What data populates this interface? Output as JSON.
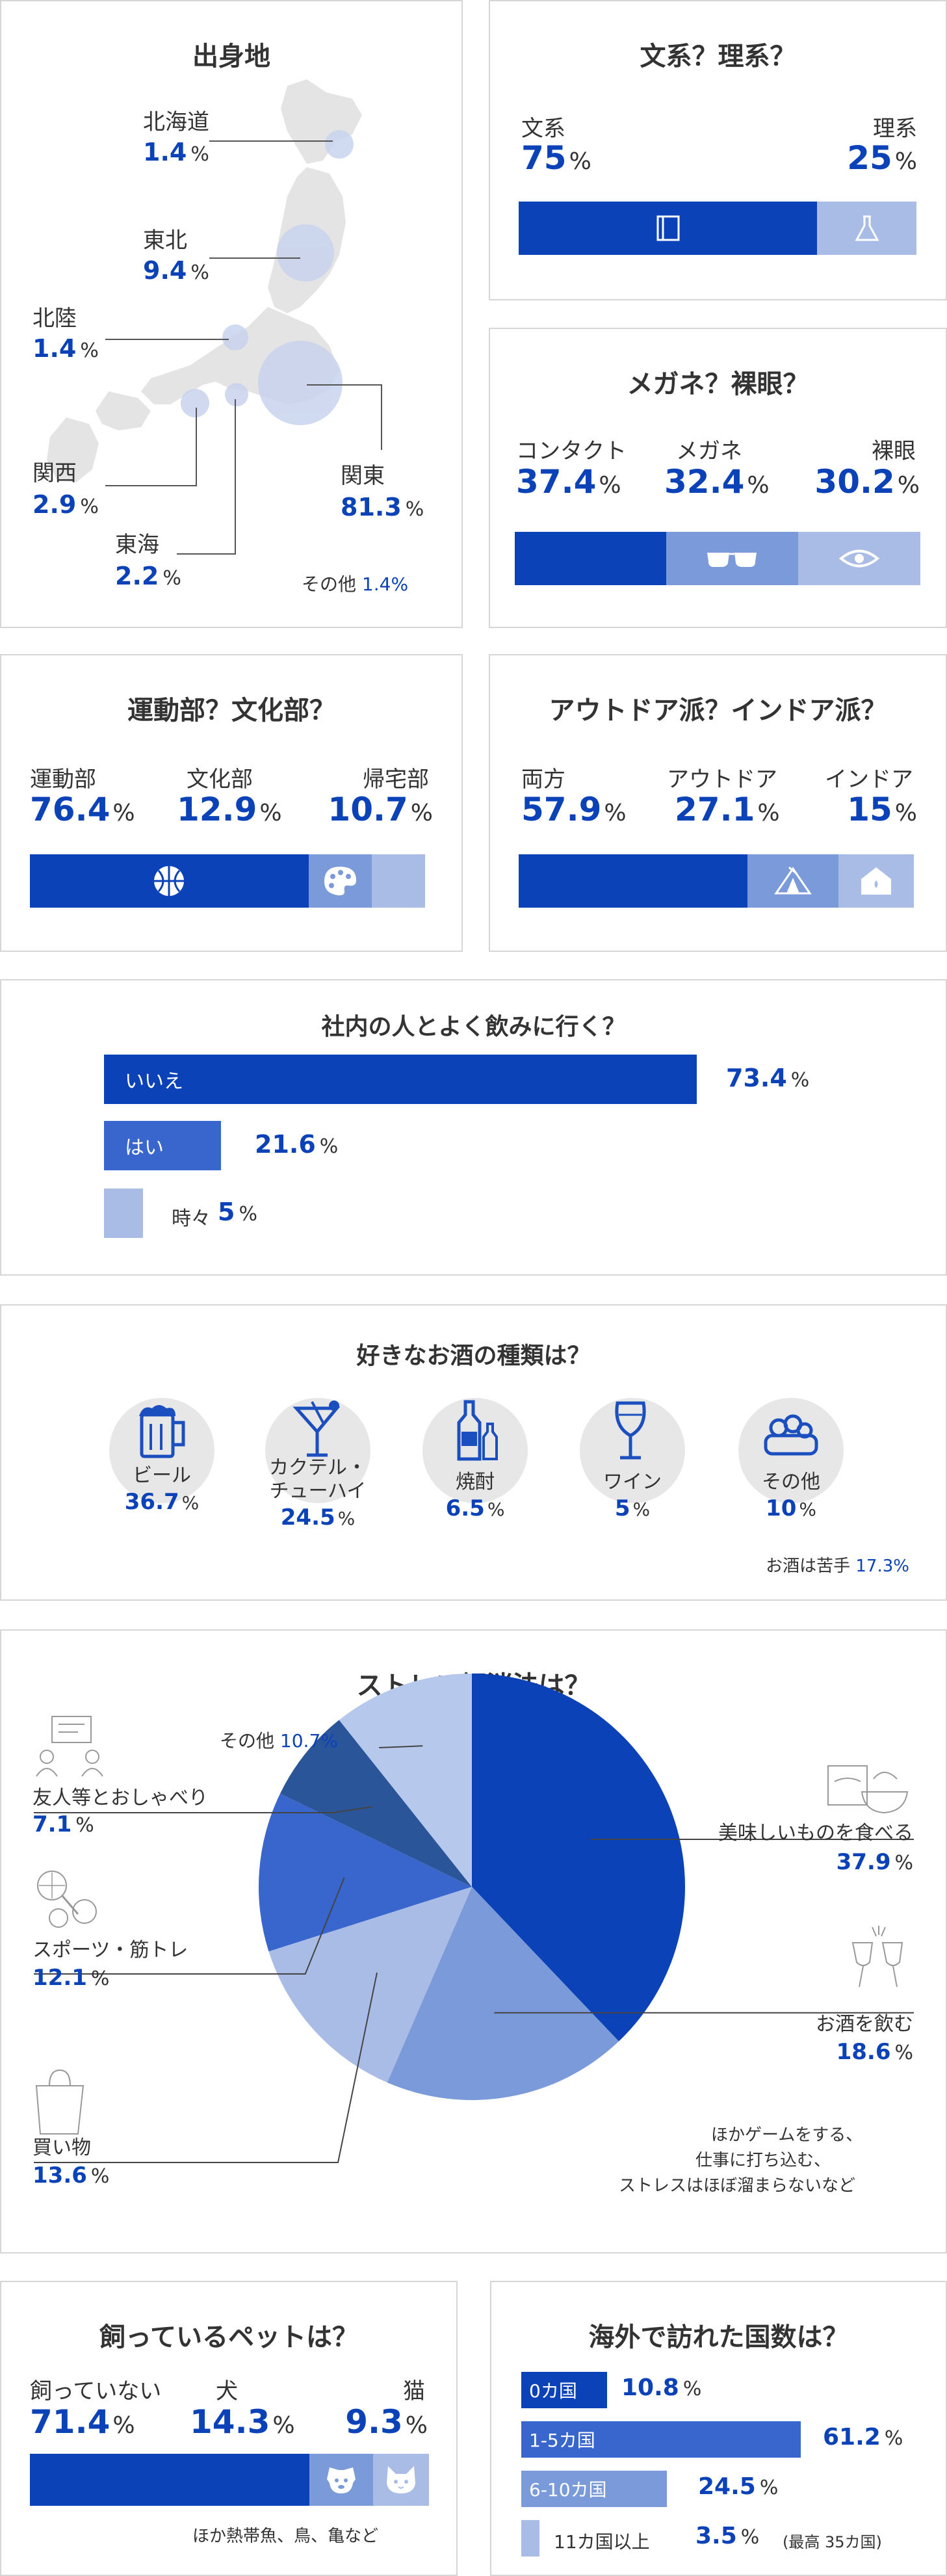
{
  "colors": {
    "dark": "#0b42b8",
    "mid": "#7b9ad9",
    "light": "#a8bce6",
    "navy": "#2b5599"
  },
  "origin": {
    "title": "出身地",
    "items": [
      {
        "label": "北海道",
        "value": "1.4",
        "unit": "%"
      },
      {
        "label": "東北",
        "value": "9.4",
        "unit": "%"
      },
      {
        "label": "北陸",
        "value": "1.4",
        "unit": "%"
      },
      {
        "label": "関西",
        "value": "2.9",
        "unit": "%"
      },
      {
        "label": "東海",
        "value": "2.2",
        "unit": "%"
      },
      {
        "label": "関東",
        "value": "81.3",
        "unit": "%"
      }
    ],
    "other_label": "その他",
    "other_value": "1.4%"
  },
  "bunri": {
    "title": "文系？理系？",
    "left_label": "文系",
    "left_value": "75",
    "right_label": "理系",
    "right_value": "25",
    "unit": "%",
    "icons": [
      "book-icon",
      "flask-icon"
    ]
  },
  "glasses": {
    "title": "メガネ？裸眼？",
    "items": [
      {
        "label": "コンタクト",
        "value": "37.4"
      },
      {
        "label": "メガネ",
        "value": "32.4"
      },
      {
        "label": "裸眼",
        "value": "30.2"
      }
    ],
    "unit": "%",
    "icons": [
      "glasses-icon",
      "eye-icon"
    ]
  },
  "club": {
    "title": "運動部？文化部？",
    "items": [
      {
        "label": "運動部",
        "value": "76.4"
      },
      {
        "label": "文化部",
        "value": "12.9"
      },
      {
        "label": "帰宅部",
        "value": "10.7"
      }
    ],
    "unit": "%",
    "icons": [
      "basketball-icon",
      "palette-icon"
    ]
  },
  "outdoor": {
    "title": "アウトドア派？インドア派？",
    "items": [
      {
        "label": "両方",
        "value": "57.9"
      },
      {
        "label": "アウトドア",
        "value": "27.1"
      },
      {
        "label": "インドア",
        "value": "15"
      }
    ],
    "unit": "%",
    "icons": [
      "tent-icon",
      "house-icon"
    ]
  },
  "drink": {
    "title": "社内の人とよく飲みに行く？",
    "items": [
      {
        "label": "いいえ",
        "value": "73.4"
      },
      {
        "label": "はい",
        "value": "21.6"
      },
      {
        "label": "時々",
        "value": "5"
      }
    ],
    "unit": "%"
  },
  "alcohol": {
    "title": "好きなお酒の種類は？",
    "items": [
      {
        "label": "ビール",
        "value": "36.7",
        "icon": "beer-icon"
      },
      {
        "label": "カクテル・\nチューハイ",
        "value": "24.5",
        "icon": "cocktail-icon"
      },
      {
        "label": "焼酎",
        "value": "6.5",
        "icon": "bottle-icon"
      },
      {
        "label": "ワイン",
        "value": "5",
        "icon": "wine-icon"
      },
      {
        "label": "その他",
        "value": "10",
        "icon": "snack-icon"
      }
    ],
    "unit": "%",
    "note_label": "お酒は苦手",
    "note_value": "17.3%"
  },
  "stress": {
    "title": "ストレス解消法は？",
    "items": [
      {
        "label": "美味しいものを食べる",
        "value": "37.9",
        "icon": "food-icon"
      },
      {
        "label": "お酒を飲む",
        "value": "18.6",
        "icon": "toast-icon"
      },
      {
        "label": "買い物",
        "value": "13.6",
        "icon": "shopping-bag-icon"
      },
      {
        "label": "スポーツ・筋トレ",
        "value": "12.1",
        "icon": "sports-icon"
      },
      {
        "label": "友人等とおしゃべり",
        "value": "7.1",
        "icon": "chat-icon"
      }
    ],
    "unit": "%",
    "other_label": "その他",
    "other_value": "10.7%",
    "note": [
      "ほかゲームをする、",
      "仕事に打ち込む、",
      "ストレスはほぼ溜まらないなど"
    ]
  },
  "pet": {
    "title": "飼っているペットは？",
    "items": [
      {
        "label": "飼っていない",
        "value": "71.4"
      },
      {
        "label": "犬",
        "value": "14.3"
      },
      {
        "label": "猫",
        "value": "9.3"
      }
    ],
    "unit": "%",
    "icons": [
      "dog-icon",
      "cat-icon"
    ],
    "note": "ほか熱帯魚、鳥、亀など"
  },
  "travel": {
    "title": "海外で訪れた国数は？",
    "items": [
      {
        "label": "0カ国",
        "value": "10.8"
      },
      {
        "label": "1-5カ国",
        "value": "61.2"
      },
      {
        "label": "6-10カ国",
        "value": "24.5"
      },
      {
        "label": "11カ国以上",
        "value": "3.5"
      }
    ],
    "unit": "%",
    "note": "(最高 35カ国)"
  },
  "chart_data": [
    {
      "type": "bar",
      "title": "出身地",
      "categories": [
        "北海道",
        "東北",
        "北陸",
        "関西",
        "東海",
        "関東",
        "その他"
      ],
      "values": [
        1.4,
        9.4,
        1.4,
        2.9,
        2.2,
        81.3,
        1.4
      ]
    },
    {
      "type": "bar",
      "title": "文系？理系？",
      "categories": [
        "文系",
        "理系"
      ],
      "values": [
        75,
        25
      ]
    },
    {
      "type": "bar",
      "title": "メガネ？裸眼？",
      "categories": [
        "コンタクト",
        "メガネ",
        "裸眼"
      ],
      "values": [
        37.4,
        32.4,
        30.2
      ]
    },
    {
      "type": "bar",
      "title": "運動部？文化部？",
      "categories": [
        "運動部",
        "文化部",
        "帰宅部"
      ],
      "values": [
        76.4,
        12.9,
        10.7
      ]
    },
    {
      "type": "bar",
      "title": "アウトドア派？インドア派？",
      "categories": [
        "両方",
        "アウトドア",
        "インドア"
      ],
      "values": [
        57.9,
        27.1,
        15
      ]
    },
    {
      "type": "bar",
      "title": "社内の人とよく飲みに行く？",
      "categories": [
        "いいえ",
        "はい",
        "時々"
      ],
      "values": [
        73.4,
        21.6,
        5
      ]
    },
    {
      "type": "bar",
      "title": "好きなお酒の種類は？",
      "categories": [
        "ビール",
        "カクテル・チューハイ",
        "焼酎",
        "ワイン",
        "その他",
        "お酒は苦手"
      ],
      "values": [
        36.7,
        24.5,
        6.5,
        5,
        10,
        17.3
      ]
    },
    {
      "type": "pie",
      "title": "ストレス解消法は？",
      "categories": [
        "美味しいものを食べる",
        "お酒を飲む",
        "買い物",
        "スポーツ・筋トレ",
        "友人等とおしゃべり",
        "その他"
      ],
      "values": [
        37.9,
        18.6,
        13.6,
        12.1,
        7.1,
        10.7
      ]
    },
    {
      "type": "bar",
      "title": "飼っているペットは？",
      "categories": [
        "飼っていない",
        "犬",
        "猫"
      ],
      "values": [
        71.4,
        14.3,
        9.3
      ]
    },
    {
      "type": "bar",
      "title": "海外で訪れた国数は？",
      "categories": [
        "0カ国",
        "1-5カ国",
        "6-10カ国",
        "11カ国以上"
      ],
      "values": [
        10.8,
        61.2,
        24.5,
        3.5
      ]
    }
  ]
}
